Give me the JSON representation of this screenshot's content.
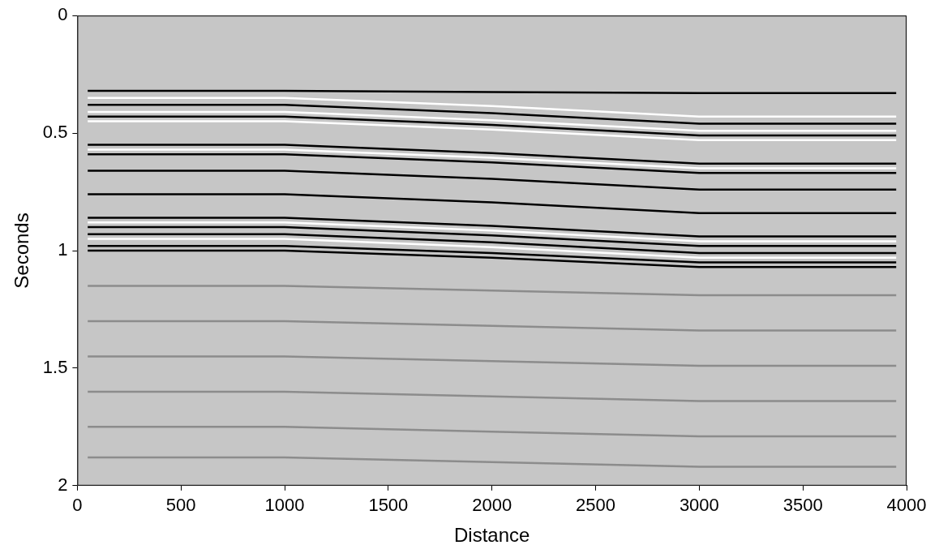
{
  "chart_data": {
    "type": "line",
    "x_label": "Distance",
    "y_label": "Seconds",
    "x": [
      50,
      1000,
      2000,
      3000,
      3950
    ],
    "xlim": [
      0,
      4000
    ],
    "xticks": [
      0,
      500,
      1000,
      1500,
      2000,
      2500,
      3000,
      3500,
      4000
    ],
    "ylim": [
      0,
      2
    ],
    "yticks": [
      0,
      0.5,
      1,
      1.5,
      2
    ],
    "grid": false,
    "series": [
      {
        "color": "#000000",
        "values": [
          0.32,
          0.32,
          0.325,
          0.33,
          0.33
        ]
      },
      {
        "color": "#ffffff",
        "values": [
          0.35,
          0.35,
          0.385,
          0.43,
          0.43
        ]
      },
      {
        "color": "#000000",
        "values": [
          0.38,
          0.38,
          0.415,
          0.46,
          0.46
        ]
      },
      {
        "color": "#ffffff",
        "values": [
          0.41,
          0.41,
          0.445,
          0.49,
          0.49
        ]
      },
      {
        "color": "#000000",
        "values": [
          0.43,
          0.43,
          0.465,
          0.51,
          0.51
        ]
      },
      {
        "color": "#ffffff",
        "values": [
          0.45,
          0.45,
          0.485,
          0.53,
          0.53
        ]
      },
      {
        "color": "#000000",
        "values": [
          0.55,
          0.55,
          0.585,
          0.63,
          0.63
        ]
      },
      {
        "color": "#ffffff",
        "values": [
          0.57,
          0.57,
          0.605,
          0.65,
          0.65
        ]
      },
      {
        "color": "#000000",
        "values": [
          0.59,
          0.59,
          0.625,
          0.67,
          0.67
        ]
      },
      {
        "color": "#000000",
        "values": [
          0.66,
          0.66,
          0.695,
          0.74,
          0.74
        ]
      },
      {
        "color": "#000000",
        "values": [
          0.76,
          0.76,
          0.795,
          0.84,
          0.84
        ]
      },
      {
        "color": "#000000",
        "values": [
          0.86,
          0.86,
          0.895,
          0.94,
          0.94
        ]
      },
      {
        "color": "#ffffff",
        "values": [
          0.88,
          0.88,
          0.915,
          0.96,
          0.96
        ]
      },
      {
        "color": "#000000",
        "values": [
          0.9,
          0.9,
          0.935,
          0.98,
          0.98
        ]
      },
      {
        "color": "#000000",
        "values": [
          0.93,
          0.93,
          0.965,
          1.01,
          1.01
        ]
      },
      {
        "color": "#ffffff",
        "values": [
          0.95,
          0.95,
          0.985,
          1.03,
          1.03
        ]
      },
      {
        "color": "#000000",
        "values": [
          0.98,
          0.98,
          1.01,
          1.05,
          1.05
        ]
      },
      {
        "color": "#000000",
        "values": [
          1.0,
          1.0,
          1.03,
          1.07,
          1.07
        ]
      },
      {
        "color": "#8c8c8c",
        "values": [
          1.15,
          1.15,
          1.17,
          1.19,
          1.19
        ]
      },
      {
        "color": "#8c8c8c",
        "values": [
          1.3,
          1.3,
          1.32,
          1.34,
          1.34
        ]
      },
      {
        "color": "#8c8c8c",
        "values": [
          1.45,
          1.45,
          1.47,
          1.49,
          1.49
        ]
      },
      {
        "color": "#8c8c8c",
        "values": [
          1.6,
          1.6,
          1.62,
          1.64,
          1.64
        ]
      },
      {
        "color": "#8c8c8c",
        "values": [
          1.75,
          1.75,
          1.77,
          1.79,
          1.79
        ]
      },
      {
        "color": "#8c8c8c",
        "values": [
          1.88,
          1.88,
          1.9,
          1.92,
          1.92
        ]
      }
    ]
  }
}
